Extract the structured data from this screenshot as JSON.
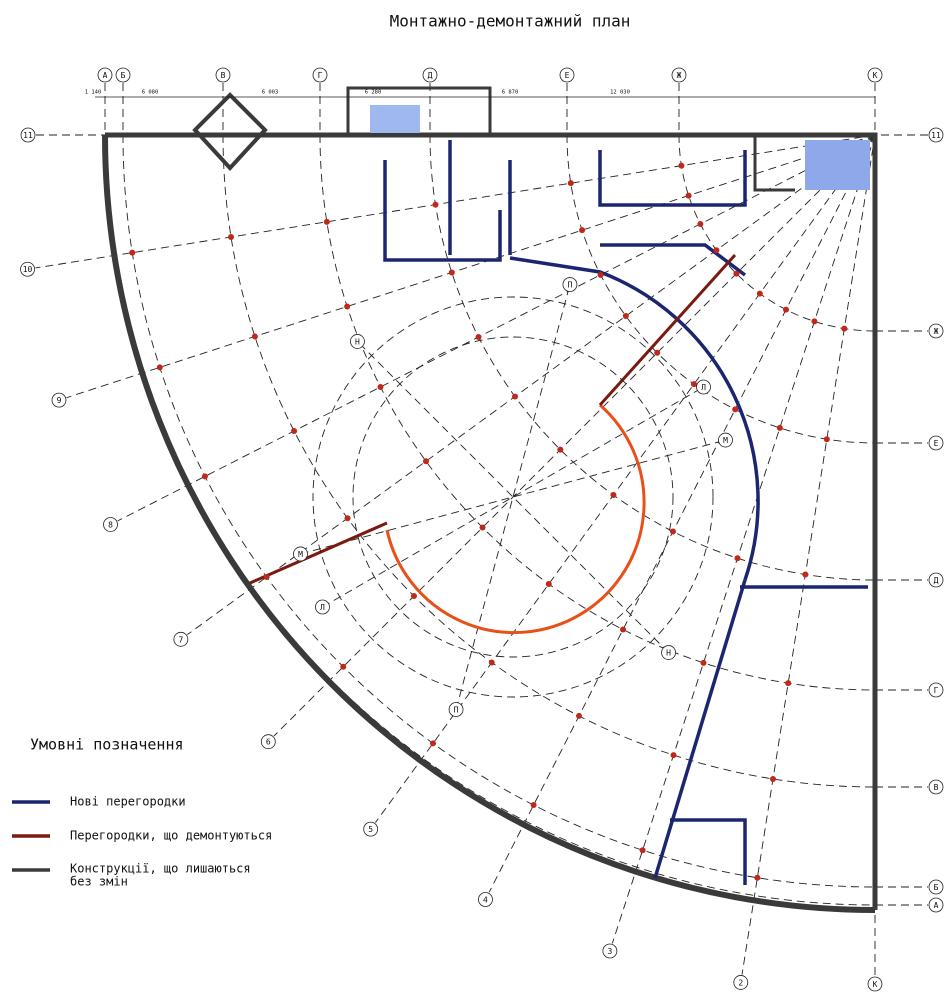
{
  "title": "Монтажно-демонтажний план",
  "grid": {
    "arc_axes": [
      "А",
      "Б",
      "В",
      "Г",
      "Д",
      "Е",
      "Ж",
      "К"
    ],
    "radial_axes": [
      "11",
      "10",
      "9",
      "8",
      "7",
      "6",
      "5",
      "4",
      "3",
      "2"
    ],
    "inner_axes": [
      "Л",
      "М",
      "Н",
      "П"
    ]
  },
  "dimensions": {
    "top": [
      "1 140",
      "6 080",
      "6 003",
      "6 280",
      "6 870",
      "12 030"
    ]
  },
  "legend": {
    "title": "Умовні позначення",
    "items": [
      [
        "Нові перегородки"
      ],
      [
        "Перегородки, що демонтуються"
      ],
      [
        "Конструкції, що лишаються",
        "без змін"
      ]
    ]
  }
}
